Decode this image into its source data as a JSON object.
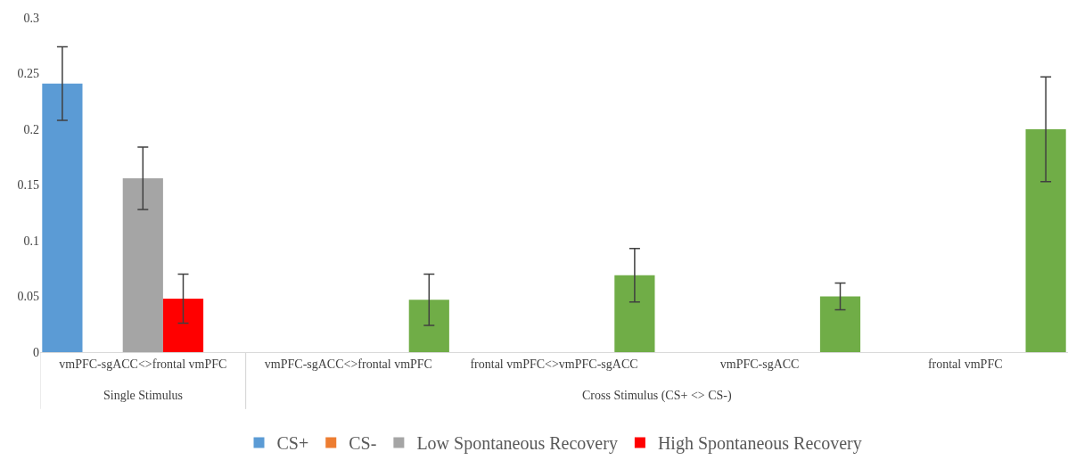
{
  "chart_data": {
    "type": "bar",
    "categories": [
      "vmPFC-sgACC<>frontal vmPFC",
      "vmPFC-sgACC<>frontal vmPFC",
      "frontal vmPFC<>vmPFC-sgACC",
      "vmPFC-sgACC",
      "frontal vmPFC"
    ],
    "series": [
      {
        "name": "CS+",
        "color": "#5b9bd5",
        "values": [
          0.241,
          null,
          null,
          null,
          null
        ],
        "errors": [
          0.033,
          null,
          null,
          null,
          null
        ]
      },
      {
        "name": "CS-",
        "color": "#ed7d31",
        "values": [
          null,
          null,
          null,
          null,
          null
        ]
      },
      {
        "name": "Low Spontaneous Recovery",
        "color": "#a5a5a5",
        "values": [
          0.156,
          null,
          null,
          null,
          null
        ],
        "errors": [
          0.028,
          null,
          null,
          null,
          null
        ]
      },
      {
        "name": "High Spontaneous Recovery",
        "color": "#ff0000",
        "values": [
          0.048,
          null,
          null,
          null,
          null
        ],
        "errors": [
          0.022,
          null,
          null,
          null,
          null
        ]
      },
      {
        "color": "#70ad47",
        "values": [
          null,
          0.047,
          0.069,
          0.05,
          0.2
        ],
        "errors": [
          null,
          0.023,
          0.024,
          0.012,
          0.047
        ]
      }
    ],
    "annotations": [
      "Single Stimulus",
      "Cross Stimulus (CS+ <> CS-)"
    ],
    "ylim": [
      0,
      0.3
    ],
    "yticks": [
      0,
      0.05,
      0.1,
      0.15,
      0.2,
      0.25,
      0.3
    ],
    "legend": "bottom"
  }
}
